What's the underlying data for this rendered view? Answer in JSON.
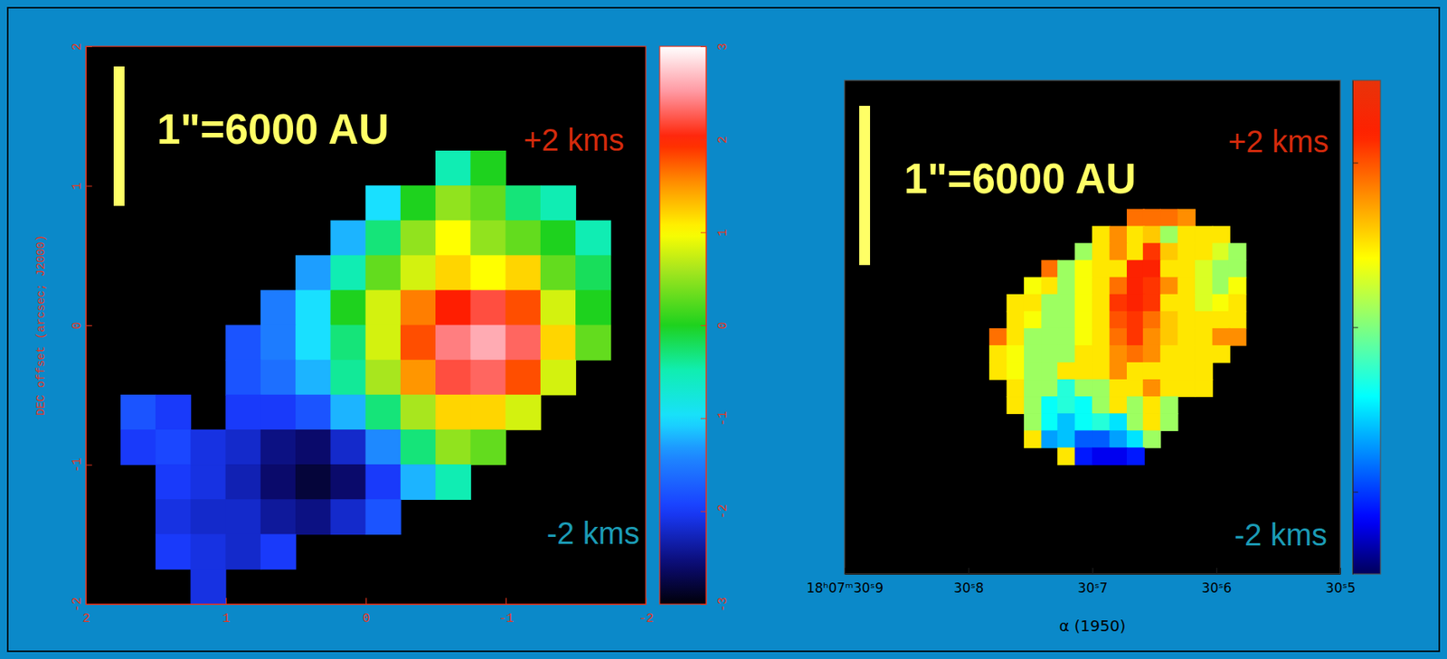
{
  "chart_data": [
    {
      "type": "heatmap",
      "ylabel": "DEC offset (arcsec; J2000)",
      "xlim": [
        2,
        -2
      ],
      "ylim": [
        -2,
        2
      ],
      "xticks": [
        2,
        1,
        0,
        -1,
        -2
      ],
      "yticks": [
        -2,
        -1,
        0,
        1,
        2
      ],
      "x": [
        1.875,
        1.625,
        1.375,
        1.125,
        0.875,
        0.625,
        0.375,
        0.125,
        -0.125,
        -0.375,
        -0.625,
        -0.875,
        -1.125,
        -1.375,
        -1.625,
        -1.875
      ],
      "y": [
        1.875,
        1.625,
        1.375,
        1.125,
        0.875,
        0.625,
        0.375,
        0.125,
        -0.125,
        -0.375,
        -0.625,
        -0.875,
        -1.125,
        -1.375,
        -1.625,
        -1.875
      ],
      "cells": [
        [
          null,
          null,
          null,
          null,
          null,
          null,
          null,
          null,
          null,
          null,
          null,
          null,
          null,
          null,
          null,
          null
        ],
        [
          null,
          null,
          null,
          null,
          null,
          null,
          null,
          null,
          null,
          null,
          null,
          null,
          null,
          null,
          null,
          null
        ],
        [
          null,
          null,
          null,
          null,
          null,
          null,
          null,
          null,
          null,
          null,
          null,
          null,
          null,
          null,
          null,
          null
        ],
        [
          null,
          null,
          null,
          null,
          null,
          null,
          null,
          null,
          null,
          null,
          -0.5,
          0.0,
          null,
          null,
          null,
          null
        ],
        [
          null,
          null,
          null,
          null,
          null,
          null,
          null,
          null,
          -1.0,
          0.0,
          0.5,
          0.3,
          -0.3,
          -0.5,
          null,
          null
        ],
        [
          null,
          null,
          null,
          null,
          null,
          null,
          null,
          -1.2,
          -0.3,
          0.5,
          1.0,
          0.5,
          0.3,
          0.0,
          -0.5,
          null
        ],
        [
          null,
          null,
          null,
          null,
          null,
          null,
          -1.3,
          -0.5,
          0.3,
          0.8,
          1.2,
          1.0,
          1.2,
          0.3,
          -0.2,
          null
        ],
        [
          null,
          null,
          null,
          null,
          null,
          -1.5,
          -1.0,
          0.0,
          0.8,
          1.6,
          2.0,
          2.2,
          1.8,
          0.8,
          0.0,
          null
        ],
        [
          null,
          null,
          null,
          null,
          -1.8,
          -1.5,
          -1.0,
          -0.3,
          0.8,
          1.8,
          2.4,
          2.6,
          2.3,
          1.2,
          0.3,
          null
        ],
        [
          null,
          null,
          null,
          null,
          -1.8,
          -1.6,
          -1.2,
          -0.4,
          0.6,
          1.5,
          2.2,
          2.3,
          1.8,
          0.8,
          null,
          null
        ],
        [
          null,
          -1.8,
          -2.0,
          null,
          -2.0,
          -2.0,
          -1.8,
          -1.2,
          -0.3,
          0.6,
          1.2,
          1.2,
          0.8,
          null,
          null,
          null
        ],
        [
          null,
          -2.0,
          -1.9,
          -2.1,
          -2.2,
          -2.5,
          -2.6,
          -2.2,
          -1.4,
          -0.3,
          0.5,
          0.3,
          null,
          null,
          null,
          null
        ],
        [
          null,
          null,
          -2.0,
          -2.1,
          -2.3,
          -2.6,
          -2.8,
          -2.6,
          -2.0,
          -1.2,
          -0.5,
          null,
          null,
          null,
          null,
          null
        ],
        [
          null,
          null,
          -2.1,
          -2.2,
          -2.2,
          -2.4,
          -2.5,
          -2.2,
          -1.8,
          null,
          null,
          null,
          null,
          null,
          null,
          null
        ],
        [
          null,
          null,
          -2.0,
          -2.1,
          -2.2,
          -2.0,
          null,
          null,
          null,
          null,
          null,
          null,
          null,
          null,
          null,
          null
        ],
        [
          null,
          null,
          null,
          -2.1,
          null,
          null,
          null,
          null,
          null,
          null,
          null,
          null,
          null,
          null,
          null,
          null
        ]
      ],
      "colorbar": {
        "range": [
          -3,
          3
        ],
        "ticks": [
          -3,
          -2,
          -1,
          0,
          1,
          2,
          3
        ]
      },
      "scale_bar": {
        "label": "1\"=6000 AU",
        "length": 1
      },
      "annotations": [
        "+2 kms",
        "-2 kms"
      ]
    },
    {
      "type": "heatmap",
      "xlabel": "α (1950)",
      "xlim": [
        30.9,
        30.5
      ],
      "ylim": [
        -1.55,
        1.55
      ],
      "xticks": [
        {
          "value": 30.9,
          "label": "18ʰ07ᵐ30ˢ9"
        },
        {
          "value": 30.8,
          "label": "30ˢ8"
        },
        {
          "value": 30.7,
          "label": "30ˢ7"
        },
        {
          "value": 30.6,
          "label": "30ˢ6"
        },
        {
          "value": 30.5,
          "label": "30ˢ5"
        }
      ],
      "tick_labels": "x",
      "x": [
        30.776,
        30.762,
        30.748,
        30.734,
        30.721,
        30.707,
        30.693,
        30.679,
        30.665,
        30.652,
        30.638,
        30.624,
        30.61,
        30.596,
        30.583
      ],
      "y": [
        0.687,
        0.58,
        0.473,
        0.366,
        0.259,
        0.152,
        0.045,
        -0.062,
        -0.169,
        -0.276,
        -0.383,
        -0.49,
        -0.597,
        -0.704,
        -0.811
      ],
      "cells": [
        [
          null,
          null,
          null,
          null,
          null,
          null,
          null,
          null,
          1.8,
          1.8,
          1.8,
          1.6,
          null,
          null,
          null
        ],
        [
          null,
          null,
          null,
          null,
          null,
          null,
          1.0,
          1.6,
          1.0,
          1.2,
          0.2,
          1.0,
          1.0,
          1.0,
          null
        ],
        [
          null,
          null,
          null,
          null,
          null,
          0.2,
          1.0,
          1.6,
          1.0,
          2.2,
          1.2,
          1.0,
          1.0,
          0.6,
          0.2
        ],
        [
          null,
          null,
          null,
          1.8,
          0.2,
          0.8,
          1.0,
          1.0,
          2.4,
          2.4,
          1.0,
          1.0,
          0.6,
          0.2,
          0.2
        ],
        [
          null,
          null,
          0.8,
          1.0,
          0.2,
          0.8,
          1.0,
          1.8,
          2.4,
          2.2,
          1.6,
          1.0,
          0.6,
          0.2,
          0.8
        ],
        [
          null,
          1.0,
          1.0,
          0.2,
          0.2,
          0.8,
          1.0,
          2.2,
          2.4,
          2.2,
          1.0,
          1.0,
          0.6,
          0.8,
          1.0
        ],
        [
          null,
          1.0,
          0.8,
          0.2,
          0.2,
          0.8,
          1.0,
          2.0,
          2.2,
          1.8,
          1.2,
          1.0,
          1.0,
          1.0,
          1.0
        ],
        [
          1.8,
          1.0,
          0.2,
          0.2,
          0.2,
          0.8,
          1.0,
          1.8,
          2.2,
          1.6,
          1.2,
          1.0,
          1.0,
          1.6,
          1.6
        ],
        [
          1.0,
          0.8,
          0.2,
          0.2,
          0.2,
          1.0,
          1.0,
          1.6,
          1.8,
          1.6,
          1.0,
          1.0,
          1.0,
          1.0,
          null
        ],
        [
          1.0,
          0.8,
          0.2,
          0.2,
          1.0,
          1.0,
          1.0,
          1.6,
          1.0,
          1.0,
          1.0,
          1.0,
          1.0,
          null,
          null
        ],
        [
          null,
          1.0,
          0.2,
          0.2,
          -0.6,
          0.2,
          0.2,
          1.0,
          1.0,
          1.6,
          1.0,
          1.0,
          1.0,
          null,
          null
        ],
        [
          null,
          1.0,
          0.2,
          -0.8,
          -0.6,
          -0.8,
          0.2,
          1.0,
          0.2,
          1.0,
          0.2,
          null,
          null,
          null,
          null
        ],
        [
          null,
          null,
          0.2,
          -0.8,
          -1.2,
          -0.8,
          -0.6,
          -1.0,
          0.2,
          1.0,
          0.2,
          null,
          null,
          null,
          null
        ],
        [
          null,
          null,
          1.0,
          -1.4,
          -1.2,
          -1.8,
          -1.8,
          -1.4,
          -1.0,
          0.2,
          null,
          null,
          null,
          null,
          null
        ],
        [
          null,
          null,
          null,
          null,
          1.0,
          -2.2,
          -2.4,
          -2.4,
          -2.2,
          null,
          null,
          null,
          null,
          null,
          null
        ]
      ],
      "colorbar": {
        "range": [
          -3,
          3
        ],
        "ticks": [
          -2,
          0,
          2
        ],
        "tick_labels": false
      },
      "scale_bar": {
        "label": "1\"=6000 AU",
        "length": 1
      },
      "annotations": [
        "+2 kms",
        "-2 kms"
      ]
    }
  ]
}
